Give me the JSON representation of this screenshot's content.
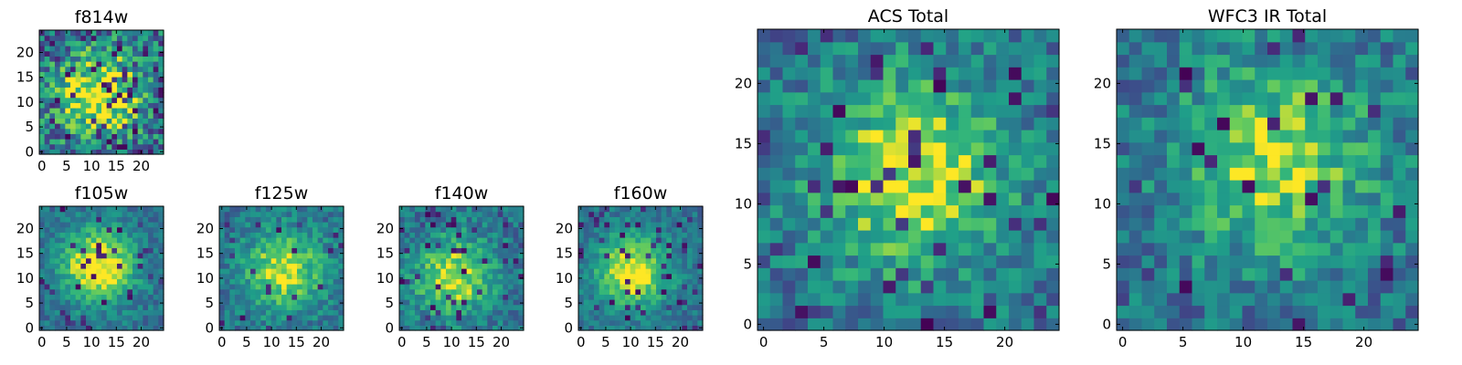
{
  "chart_data": [
    {
      "type": "heatmap",
      "title": "f814w",
      "xlabel": "",
      "ylabel": "",
      "xlim": [
        0,
        24
      ],
      "ylim": [
        0,
        24
      ],
      "xticks": [
        0,
        5,
        10,
        15,
        20
      ],
      "yticks": [
        0,
        5,
        10,
        15,
        20
      ],
      "colormap": "viridis",
      "pattern": {
        "size": 24,
        "center": [
          11,
          11
        ],
        "sigma": 6,
        "peak": 0.62,
        "noise": 0.62,
        "seed": 17,
        "dark_fraction": 0.12
      }
    },
    {
      "type": "heatmap",
      "title": "f105w",
      "xlabel": "",
      "ylabel": "",
      "xlim": [
        0,
        24
      ],
      "ylim": [
        0,
        24
      ],
      "xticks": [
        0,
        5,
        10,
        15,
        20
      ],
      "yticks": [
        0,
        5,
        10,
        15,
        20
      ],
      "colormap": "viridis",
      "pattern": {
        "size": 24,
        "center": [
          11,
          12
        ],
        "sigma": 5,
        "peak": 0.68,
        "noise": 0.3,
        "seed": 23,
        "dark_fraction": 0.05
      }
    },
    {
      "type": "heatmap",
      "title": "f125w",
      "xlabel": "",
      "ylabel": "",
      "xlim": [
        0,
        24
      ],
      "ylim": [
        0,
        24
      ],
      "xticks": [
        0,
        5,
        10,
        15,
        20
      ],
      "yticks": [
        0,
        5,
        10,
        15,
        20
      ],
      "colormap": "viridis",
      "pattern": {
        "size": 24,
        "center": [
          12,
          11
        ],
        "sigma": 5.5,
        "peak": 0.55,
        "noise": 0.34,
        "seed": 41,
        "dark_fraction": 0.05
      }
    },
    {
      "type": "heatmap",
      "title": "f140w",
      "xlabel": "",
      "ylabel": "",
      "xlim": [
        0,
        24
      ],
      "ylim": [
        0,
        24
      ],
      "xticks": [
        0,
        5,
        10,
        15,
        20
      ],
      "yticks": [
        0,
        5,
        10,
        15,
        20
      ],
      "colormap": "viridis",
      "pattern": {
        "size": 24,
        "center": [
          10,
          10
        ],
        "sigma": 5.5,
        "peak": 0.55,
        "noise": 0.36,
        "seed": 59,
        "dark_fraction": 0.06
      }
    },
    {
      "type": "heatmap",
      "title": "f160w",
      "xlabel": "",
      "ylabel": "",
      "xlim": [
        0,
        24
      ],
      "ylim": [
        0,
        24
      ],
      "xticks": [
        0,
        5,
        10,
        15,
        20
      ],
      "yticks": [
        0,
        5,
        10,
        15,
        20
      ],
      "colormap": "viridis",
      "pattern": {
        "size": 24,
        "center": [
          10,
          11
        ],
        "sigma": 5,
        "peak": 0.62,
        "noise": 0.28,
        "seed": 73,
        "dark_fraction": 0.08
      }
    },
    {
      "type": "heatmap",
      "title": "ACS Total",
      "xlabel": "",
      "ylabel": "",
      "xlim": [
        0,
        24
      ],
      "ylim": [
        0,
        24
      ],
      "xticks": [
        0,
        5,
        10,
        15,
        20
      ],
      "yticks": [
        0,
        5,
        10,
        15,
        20
      ],
      "colormap": "viridis",
      "pattern": {
        "size": 24,
        "center": [
          12,
          12
        ],
        "sigma": 5.5,
        "peak": 0.55,
        "noise": 0.42,
        "seed": 97,
        "dark_fraction": 0.07
      }
    },
    {
      "type": "heatmap",
      "title": "WFC3 IR Total",
      "xlabel": "",
      "ylabel": "",
      "xlim": [
        0,
        24
      ],
      "ylim": [
        0,
        24
      ],
      "xticks": [
        0,
        5,
        10,
        15,
        20
      ],
      "yticks": [
        0,
        5,
        10,
        15,
        20
      ],
      "colormap": "viridis",
      "pattern": {
        "size": 24,
        "center": [
          12,
          13
        ],
        "sigma": 5.5,
        "peak": 0.5,
        "noise": 0.42,
        "seed": 131,
        "dark_fraction": 0.04
      }
    }
  ]
}
